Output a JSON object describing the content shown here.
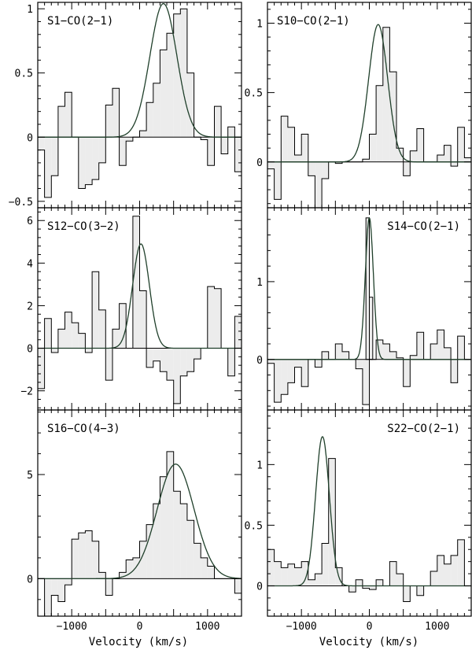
{
  "chart_data": [
    {
      "type": "histogram-spectrum",
      "label": "S1−CO(2−1)",
      "xlim": [
        -1500,
        1500
      ],
      "ylim": [
        -0.55,
        1.05
      ],
      "yticks": [
        {
          "v": -0.5,
          "t": "−0.5"
        },
        {
          "v": 0,
          "t": "0"
        },
        {
          "v": 0.5,
          "t": "0.5"
        },
        {
          "v": 1,
          "t": "1"
        }
      ],
      "bin_width": 100,
      "x_start": -1500,
      "values": [
        -0.1,
        -0.47,
        -0.3,
        0.24,
        0.35,
        0.0,
        -0.4,
        -0.37,
        -0.33,
        -0.2,
        0.25,
        0.38,
        -0.22,
        -0.03,
        0.0,
        0.05,
        0.27,
        0.42,
        0.68,
        0.81,
        0.96,
        1.0,
        0.5,
        0.0,
        -0.02,
        -0.22,
        0.24,
        -0.13,
        0.08,
        -0.27
      ],
      "fit": {
        "amp": 1.04,
        "center": 350,
        "fwhm": 470
      }
    },
    {
      "type": "histogram-spectrum",
      "label": "S10−CO(2−1)",
      "xlim": [
        -1500,
        1500
      ],
      "ylim": [
        -0.33,
        1.15
      ],
      "yticks": [
        {
          "v": 0,
          "t": "0"
        },
        {
          "v": 0.5,
          "t": "0.5"
        },
        {
          "v": 1,
          "t": "1"
        }
      ],
      "bin_width": 100,
      "x_start": -1500,
      "values": [
        -0.05,
        -0.27,
        0.33,
        0.25,
        0.05,
        0.2,
        -0.1,
        -0.35,
        -0.12,
        0.0,
        -0.01,
        0.0,
        0.0,
        0.0,
        0.02,
        0.2,
        0.55,
        0.97,
        0.65,
        0.1,
        -0.1,
        0.08,
        0.24,
        0.0,
        0.0,
        0.05,
        0.12,
        -0.03,
        0.25,
        0.03
      ],
      "fit": {
        "amp": 0.99,
        "center": 130,
        "fwhm": 330
      }
    },
    {
      "type": "histogram-spectrum",
      "label": "S12−CO(3−2)",
      "xlim": [
        -1500,
        1500
      ],
      "ylim": [
        -2.9,
        6.6
      ],
      "yticks": [
        {
          "v": -2,
          "t": "−2"
        },
        {
          "v": 0,
          "t": "0"
        },
        {
          "v": 2,
          "t": "2"
        },
        {
          "v": 4,
          "t": "4"
        },
        {
          "v": 6,
          "t": "6"
        }
      ],
      "bin_width": 100,
      "x_start": -1500,
      "values": [
        -1.9,
        1.4,
        -0.2,
        0.9,
        1.7,
        1.2,
        0.7,
        -0.2,
        3.6,
        1.8,
        -1.5,
        0.9,
        2.1,
        0.0,
        6.2,
        2.7,
        -0.9,
        -0.6,
        -1.1,
        -1.5,
        -2.6,
        -1.3,
        -1.1,
        -0.5,
        0.0,
        2.9,
        2.8,
        0.0,
        -1.3,
        1.5
      ],
      "fit": {
        "amp": 4.9,
        "center": 20,
        "fwhm": 290
      }
    },
    {
      "type": "histogram-spectrum",
      "label": "S14−CO(2−1)",
      "xlim": [
        -1500,
        1500
      ],
      "ylim": [
        -0.65,
        1.95
      ],
      "yticks": [
        {
          "v": 0,
          "t": "0"
        },
        {
          "v": 1,
          "t": "1"
        }
      ],
      "bin_width": 100,
      "x_start": -1500,
      "values": [
        -0.05,
        -0.55,
        -0.45,
        -0.3,
        -0.1,
        -0.35,
        0.0,
        -0.1,
        0.1,
        0.0,
        0.2,
        0.1,
        0.0,
        -0.12,
        -0.58,
        0.0,
        0.25,
        0.2,
        0.1,
        0.02,
        -0.35,
        0.05,
        0.35,
        0.0,
        0.2,
        0.38,
        0.15,
        -0.3,
        0.3,
        0.0
      ],
      "fit": {
        "amp": 1.82,
        "center": 0,
        "fwhm": 140
      },
      "peak_bins": [
        {
          "x0": -50,
          "x1": 0,
          "v": 1.82
        },
        {
          "x0": 0,
          "x1": 50,
          "v": 0.8
        }
      ]
    },
    {
      "type": "histogram-spectrum",
      "label": "S16−CO(4−3)",
      "xlim": [
        -1500,
        1500
      ],
      "ylim": [
        -1.8,
        8.1
      ],
      "yticks": [
        {
          "v": 0,
          "t": "0"
        },
        {
          "v": 5,
          "t": "5"
        }
      ],
      "bin_width": 100,
      "x_start": -1500,
      "values": [
        0.0,
        -1.8,
        -0.8,
        -1.1,
        -0.3,
        1.9,
        2.2,
        2.3,
        1.8,
        0.3,
        -0.8,
        0.0,
        0.3,
        0.9,
        1.0,
        1.8,
        2.6,
        3.6,
        4.9,
        6.1,
        4.2,
        3.6,
        2.8,
        1.7,
        1.0,
        0.6,
        0.0,
        0.0,
        0.0,
        -0.7
      ],
      "fit": {
        "amp": 5.5,
        "center": 530,
        "fwhm": 640
      }
    },
    {
      "type": "histogram-spectrum",
      "label": "S22−CO(2−1)",
      "xlim": [
        -1500,
        1500
      ],
      "ylim": [
        -0.25,
        1.45
      ],
      "yticks": [
        {
          "v": 0,
          "t": "0"
        },
        {
          "v": 0.5,
          "t": "0.5"
        },
        {
          "v": 1,
          "t": "1"
        }
      ],
      "bin_width": 100,
      "x_start": -1500,
      "values": [
        0.3,
        0.2,
        0.15,
        0.18,
        0.15,
        0.2,
        0.05,
        0.1,
        0.35,
        1.05,
        0.15,
        0.0,
        -0.05,
        0.05,
        -0.02,
        -0.03,
        0.05,
        0.0,
        0.2,
        0.1,
        -0.13,
        0.0,
        -0.08,
        0.0,
        0.12,
        0.25,
        0.18,
        0.25,
        0.38,
        0.0
      ],
      "fit": {
        "amp": 1.23,
        "center": -690,
        "fwhm": 240
      }
    }
  ],
  "axes": {
    "xlabel": "Velocity (km/s)",
    "xticks": [
      {
        "v": -1000,
        "t": "−1000"
      },
      {
        "v": 0,
        "t": "0"
      },
      {
        "v": 1000,
        "t": "1000"
      }
    ]
  },
  "colors": {
    "fill": "#ececec",
    "line": "#000000",
    "fit": "#1f3f2a"
  }
}
